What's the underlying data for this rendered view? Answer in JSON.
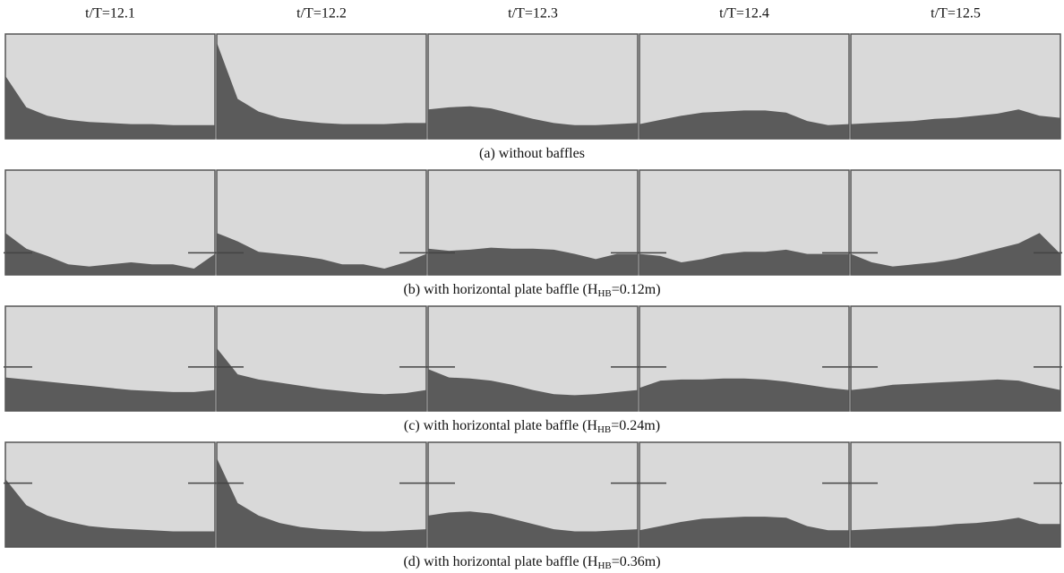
{
  "column_headers": [
    "t/T=12.1",
    "t/T=12.2",
    "t/T=12.3",
    "t/T=12.4",
    "t/T=12.5"
  ],
  "captions": [
    {
      "prefix": "(a) without baffles"
    },
    {
      "prefix": "(b) with horizontal plate baffle (H",
      "sub": "HB",
      "suffix": "=0.12m)"
    },
    {
      "prefix": "(c) with horizontal plate baffle (H",
      "sub": "HB",
      "suffix": "=0.24m)"
    },
    {
      "prefix": "(d) with horizontal plate baffle (H",
      "sub": "HB",
      "suffix": "=0.36m)"
    }
  ]
}
